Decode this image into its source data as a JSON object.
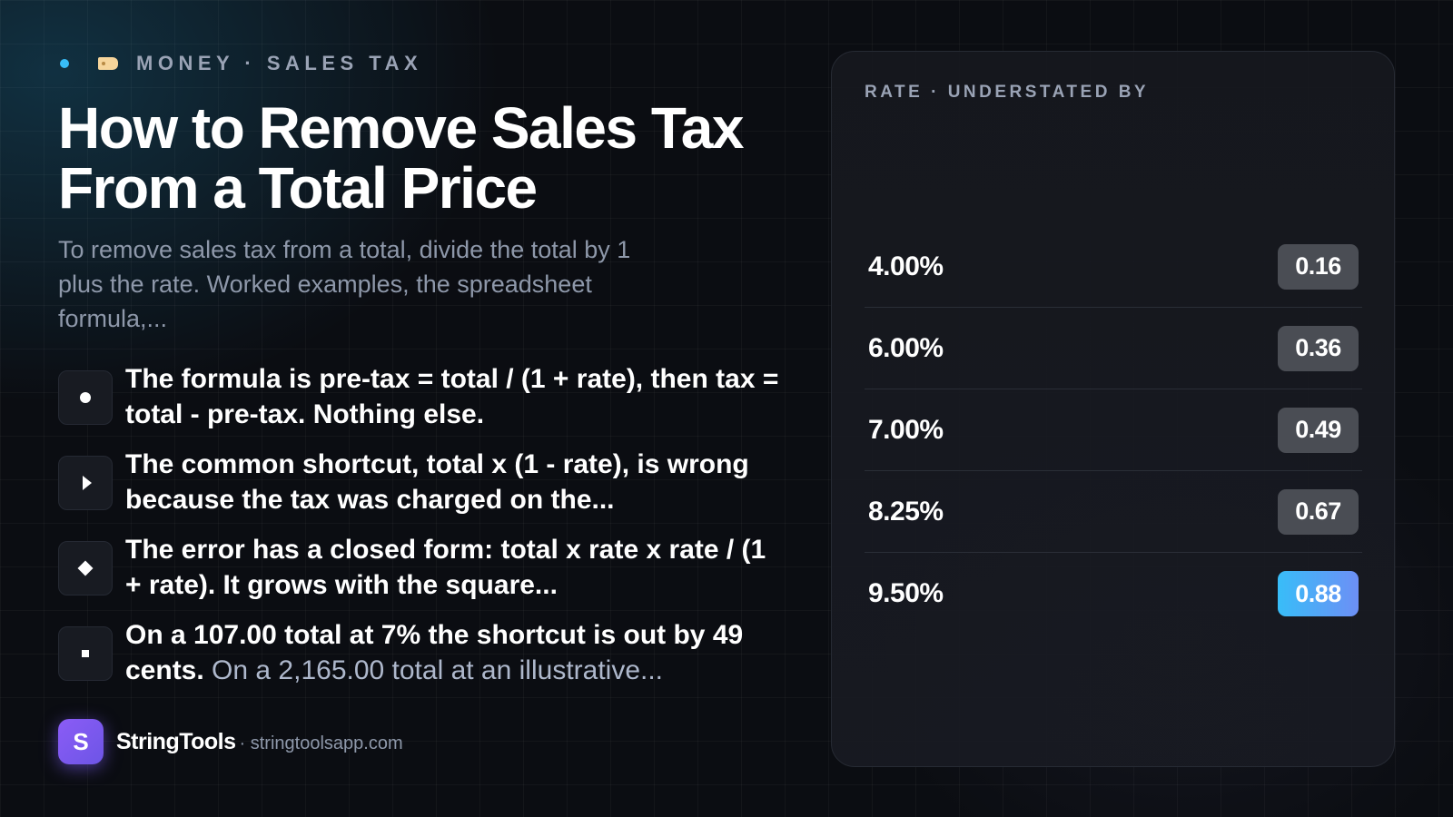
{
  "eyebrow": {
    "dot_color": "#38bdf8",
    "icon": "tag-icon",
    "text": "MONEY · SALES TAX"
  },
  "title": "How to Remove Sales Tax From a Total Price",
  "subtitle": "To remove sales tax from a total, divide the total by 1 plus the rate. Worked examples, the spreadsheet formula,...",
  "bullets": [
    {
      "icon": "circle-icon",
      "text": "The formula is pre-tax = total / (1 + rate), then tax = total - pre-tax. Nothing else.",
      "muted": ""
    },
    {
      "icon": "triangle-icon",
      "text": "The common shortcut, total x (1 - rate), is wrong because the tax was charged on the...",
      "muted": ""
    },
    {
      "icon": "diamond-icon",
      "text": "The error has a closed form: total x rate x rate / (1 + rate). It grows with the square...",
      "muted": ""
    },
    {
      "icon": "square-icon",
      "text": "On a 107.00 total at 7% the shortcut is out by 49 cents.",
      "muted": " On a 2,165.00 total at an illustrative..."
    }
  ],
  "brand": {
    "logo_letter": "S",
    "name": "StringTools",
    "url": "· stringtoolsapp.com"
  },
  "panel": {
    "title": "RATE · UNDERSTATED BY",
    "rows": [
      {
        "rate": "4.00%",
        "value": "0.16",
        "highlight": false
      },
      {
        "rate": "6.00%",
        "value": "0.36",
        "highlight": false
      },
      {
        "rate": "7.00%",
        "value": "0.49",
        "highlight": false
      },
      {
        "rate": "8.25%",
        "value": "0.67",
        "highlight": false
      },
      {
        "rate": "9.50%",
        "value": "0.88",
        "highlight": true
      }
    ]
  },
  "colors": {
    "accent": "#38bdf8",
    "brand": "#8b5cf6",
    "highlight_gradient": [
      "#38bdf8",
      "#6d8ff5"
    ]
  }
}
